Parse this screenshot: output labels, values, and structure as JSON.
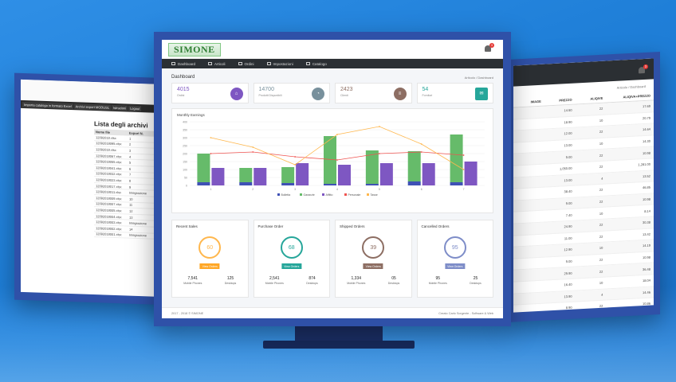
{
  "left": {
    "top_text": "",
    "menu": [
      "Importa catalogo in formato Excel",
      "Archivi export MODUSL",
      "Istruzioni",
      "Logout"
    ],
    "list_title": "Lista degli archivi",
    "columns": [
      "Nome file",
      "Export N."
    ],
    "rows": [
      [
        "12092018.xlsx",
        "1"
      ],
      [
        "12092018095.xlsx",
        "2"
      ],
      [
        "12092018.xlsx",
        "3"
      ],
      [
        "12092018067.xlsx",
        "4"
      ],
      [
        "12092018055.xlsx",
        "5"
      ],
      [
        "12092018041.xlsx",
        "6"
      ],
      [
        "12092018032.xlsx",
        "7"
      ],
      [
        "12092018023.xlsx",
        "8"
      ],
      [
        "12092018017.xlsx",
        "9"
      ],
      [
        "12092018011.xlsx",
        "Integrazione"
      ],
      [
        "12092018009.xlsx",
        "10"
      ],
      [
        "12092018007.xlsx",
        "11"
      ],
      [
        "12092018005.xlsx",
        "12"
      ],
      [
        "12092018004.xlsx",
        "13"
      ],
      [
        "12092018003.xlsx",
        "Integrazione"
      ],
      [
        "12092018002.xlsx",
        "14"
      ],
      [
        "12092018001.xlsx",
        "Integrazione"
      ]
    ]
  },
  "right": {
    "breadcrumb": "Articolo / Dashboard",
    "columns": [
      "IMAGE",
      "PREZZO",
      "ALIQIVE",
      "ALIQIVA+PREZZO"
    ],
    "rows": [
      [
        "",
        "14.50",
        "22",
        "17.69"
      ],
      [
        "",
        "18.90",
        "10",
        "20.79"
      ],
      [
        "",
        "12.00",
        "22",
        "14.64"
      ],
      [
        "",
        "13.00",
        "10",
        "14.30"
      ],
      [
        "",
        "9.00",
        "22",
        "10.98"
      ],
      [
        "",
        "1,050.00",
        "22",
        "1,281.00"
      ],
      [
        "",
        "13.00",
        "4",
        "13.52"
      ],
      [
        "",
        "38.40",
        "22",
        "46.85"
      ],
      [
        "",
        "9.00",
        "22",
        "10.98"
      ],
      [
        "",
        "7.40",
        "10",
        "8.14"
      ],
      [
        "",
        "24.90",
        "22",
        "30.38"
      ],
      [
        "",
        "11.00",
        "22",
        "13.42"
      ],
      [
        "",
        "12.90",
        "10",
        "14.19"
      ],
      [
        "",
        "9.00",
        "22",
        "10.98"
      ],
      [
        "",
        "29.90",
        "22",
        "36.48"
      ],
      [
        "",
        "16.40",
        "10",
        "18.04"
      ],
      [
        "",
        "13.90",
        "4",
        "14.46"
      ],
      [
        "",
        "8.90",
        "22",
        "10.86"
      ]
    ]
  },
  "center": {
    "logo_text": "SIMONE",
    "bell_count": "3",
    "nav": [
      "Dashboard",
      "Articoli",
      "Ordini",
      "Impostazioni",
      "Catalogo"
    ],
    "page_title": "Dashboard",
    "breadcrumb": "Articolo / Dashboard",
    "stats": [
      {
        "value": "4015",
        "label": "Ordini",
        "color": "#7e57c2",
        "icon": "basket-icon"
      },
      {
        "value": "14700",
        "label": "Prodotti Disponibili",
        "color": "#78909c",
        "icon": "chart-icon"
      },
      {
        "value": "2423",
        "label": "Clienti",
        "color": "#8d6e63",
        "icon": "database-icon"
      },
      {
        "value": "54",
        "label": "Fornitori",
        "color": "#26a69a",
        "icon": "message-icon"
      }
    ],
    "chart_title": "Monthly Earnings",
    "orders": [
      {
        "title": "Recent Sales",
        "value": "60",
        "ring_color": "#ffb74d",
        "progress": 0.6,
        "button": "View Orders",
        "btn_color": "#ffa726",
        "a_val": "7,541",
        "a_lbl": "Mobile Phones",
        "b_val": "125",
        "b_lbl": "Desktops"
      },
      {
        "title": "Purchase Order",
        "value": "68",
        "ring_color": "#26a69a",
        "progress": 0.68,
        "button": "View Orders",
        "btn_color": "#26a69a",
        "a_val": "2,541",
        "a_lbl": "Mobile Phones",
        "b_val": "874",
        "b_lbl": "Desktops"
      },
      {
        "title": "Shipped Orders",
        "value": "39",
        "ring_color": "#8d6e63",
        "progress": 0.39,
        "button": "View Orders",
        "btn_color": "#8d6e63",
        "a_val": "1,334",
        "a_lbl": "Mobile Phones",
        "b_val": "05",
        "b_lbl": "Desktops"
      },
      {
        "title": "Cancelled Orders",
        "value": "95",
        "ring_color": "#7e8dc8",
        "progress": 0.95,
        "button": "View Orders",
        "btn_color": "#7e8dc8",
        "a_val": "95",
        "a_lbl": "Mobile Phones",
        "b_val": "25",
        "b_lbl": "Desktops"
      }
    ],
    "footer_left": "2017 - 2018 © SIMONE",
    "footer_right": "Creato Carlo Sorgente - Software & Web"
  },
  "chart_data": {
    "type": "bar",
    "title": "Monthly Earnings",
    "categories": [
      "1",
      "2",
      "3",
      "4",
      "5",
      "6",
      "7"
    ],
    "ylim": [
      0,
      400
    ],
    "y_ticks": [
      "400",
      "350",
      "300",
      "250",
      "200",
      "150",
      "100",
      "50",
      "0"
    ],
    "series": [
      {
        "name": "Bolletta",
        "color": "#3f51b5",
        "kind": "bar",
        "values": [
          20,
          20,
          15,
          10,
          10,
          25,
          20
        ]
      },
      {
        "name": "Garanzie",
        "color": "#66bb6a",
        "kind": "bar",
        "values": [
          180,
          90,
          100,
          300,
          210,
          190,
          300
        ]
      },
      {
        "name": "Affitto",
        "color": "#7e57c2",
        "kind": "bar",
        "values": [
          110,
          110,
          140,
          130,
          140,
          140,
          150
        ]
      },
      {
        "name": "Personale",
        "color": "#ef5350",
        "kind": "line",
        "values": [
          200,
          210,
          180,
          160,
          200,
          210,
          190
        ]
      },
      {
        "name": "Tasse",
        "color": "#ffb74d",
        "kind": "line",
        "values": [
          300,
          240,
          130,
          320,
          370,
          260,
          100
        ]
      }
    ]
  }
}
